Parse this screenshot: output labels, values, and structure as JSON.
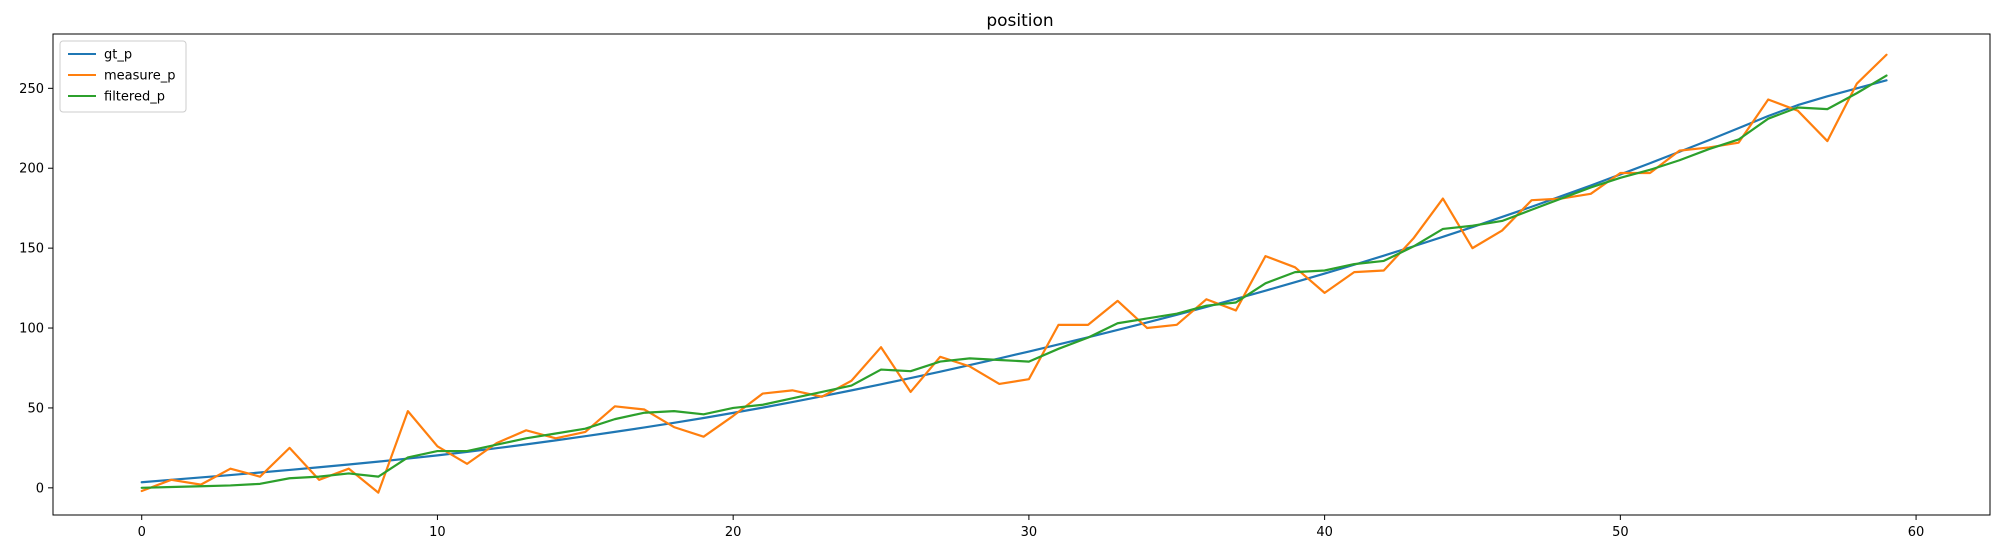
{
  "chart_data": {
    "type": "line",
    "title": "position",
    "xlabel": "",
    "ylabel": "",
    "xlim": [
      -3,
      62.5
    ],
    "ylim": [
      -17,
      284
    ],
    "xticks": [
      0,
      10,
      20,
      30,
      40,
      50,
      60
    ],
    "yticks": [
      0,
      50,
      100,
      150,
      200,
      250
    ],
    "grid": false,
    "legend_position": "top-left",
    "x": [
      0,
      1,
      2,
      3,
      4,
      5,
      6,
      7,
      8,
      9,
      10,
      11,
      12,
      13,
      14,
      15,
      16,
      17,
      18,
      19,
      20,
      21,
      22,
      23,
      24,
      25,
      26,
      27,
      28,
      29,
      30,
      31,
      32,
      33,
      34,
      35,
      36,
      37,
      38,
      39,
      40,
      41,
      42,
      43,
      44,
      45,
      46,
      47,
      48,
      49,
      50,
      51,
      52,
      53,
      54,
      55,
      56,
      57,
      58,
      59
    ],
    "series": [
      {
        "name": "gt_p",
        "color": "#1f77b4",
        "values": [
          3.5,
          5.0,
          6.5,
          8.0,
          9.6,
          11.2,
          12.9,
          14.6,
          16.4,
          18.3,
          20.3,
          22.5,
          24.8,
          27.2,
          29.7,
          32.3,
          35.0,
          37.8,
          40.7,
          43.7,
          46.9,
          50.2,
          53.7,
          57.3,
          61.0,
          64.8,
          68.7,
          72.7,
          76.8,
          81.0,
          85.3,
          89.7,
          94.2,
          98.8,
          103.5,
          108.3,
          113.2,
          118.2,
          123.4,
          128.7,
          134.1,
          139.6,
          145.3,
          151.1,
          157.1,
          163.2,
          169.5,
          175.9,
          182.5,
          189.2,
          196.1,
          203.1,
          210.3,
          217.6,
          225.1,
          232.7,
          239.5,
          245.0,
          250.0,
          255.0
        ]
      },
      {
        "name": "measure_p",
        "color": "#ff7f0e",
        "values": [
          -2,
          5,
          2,
          12,
          7,
          25,
          5,
          12,
          -3,
          48,
          26,
          15,
          28,
          36,
          31,
          35,
          51,
          49,
          38,
          32,
          45,
          59,
          61,
          57,
          67,
          88,
          60,
          82,
          76,
          65,
          68,
          102,
          102,
          117,
          100,
          102,
          118,
          111,
          145,
          138,
          122,
          135,
          136,
          156,
          181,
          150,
          161,
          180,
          181,
          184,
          197,
          197,
          211,
          213,
          216,
          243,
          236,
          217,
          253,
          271
        ]
      },
      {
        "name": "filtered_p",
        "color": "#2ca02c",
        "values": [
          0,
          0.5,
          1,
          1.5,
          2.5,
          6,
          7,
          9,
          7,
          19,
          23,
          23,
          27,
          31,
          34,
          37,
          43,
          47,
          48,
          46,
          50,
          52,
          56,
          60,
          64,
          74,
          73,
          79,
          81,
          80,
          79,
          87,
          94,
          103,
          106,
          109,
          114,
          116,
          128,
          135,
          136,
          140,
          142,
          151,
          162,
          164,
          167,
          174,
          181,
          188,
          194,
          199,
          205,
          212,
          218,
          231,
          238,
          237,
          247,
          258
        ]
      }
    ]
  }
}
